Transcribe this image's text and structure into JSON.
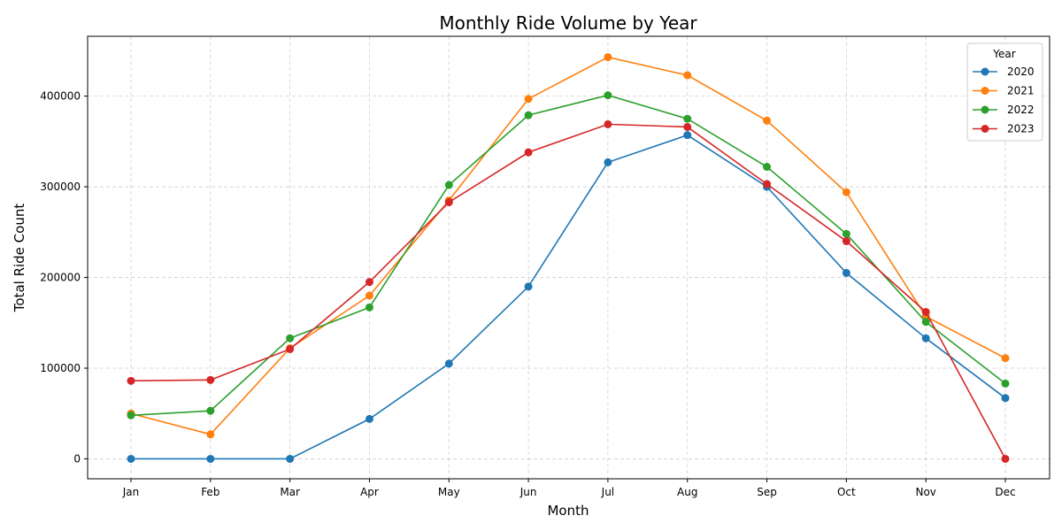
{
  "chart_data": {
    "type": "line",
    "title": "Monthly Ride Volume by Year",
    "xlabel": "Month",
    "ylabel": "Total Ride Count",
    "categories": [
      "Jan",
      "Feb",
      "Mar",
      "Apr",
      "May",
      "Jun",
      "Jul",
      "Aug",
      "Sep",
      "Oct",
      "Nov",
      "Dec"
    ],
    "ylim": [
      -22000,
      466000
    ],
    "yticks": [
      0,
      100000,
      200000,
      300000,
      400000
    ],
    "ytick_labels": [
      "0",
      "100000",
      "200000",
      "300000",
      "400000"
    ],
    "grid": true,
    "legend": {
      "title": "Year",
      "placement": "top-right"
    },
    "series": [
      {
        "name": "2020",
        "color": "#1f77b4",
        "values": [
          0,
          0,
          0,
          44000,
          105000,
          190000,
          327000,
          357000,
          300000,
          205000,
          133000,
          67000
        ]
      },
      {
        "name": "2021",
        "color": "#ff7f0e",
        "values": [
          50000,
          27000,
          122000,
          180000,
          285000,
          397000,
          443000,
          423000,
          373000,
          294000,
          157000,
          111000
        ]
      },
      {
        "name": "2022",
        "color": "#2ca02c",
        "values": [
          48000,
          53000,
          133000,
          167000,
          302000,
          379000,
          401000,
          375000,
          322000,
          248000,
          151000,
          83000
        ]
      },
      {
        "name": "2023",
        "color": "#d62728",
        "values": [
          86000,
          87000,
          121000,
          195000,
          283000,
          338000,
          369000,
          366000,
          303000,
          240000,
          162000,
          0
        ]
      }
    ]
  }
}
